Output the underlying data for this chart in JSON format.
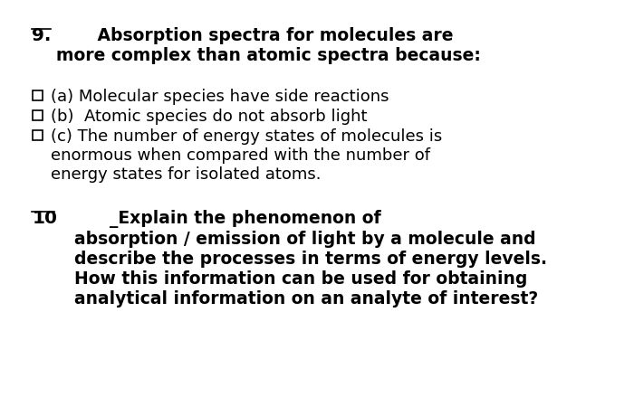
{
  "bg_color": "#ffffff",
  "text_color": "#000000",
  "q9_number": "9.",
  "q9_title": "        ⁠Absorption spectra for molecules are\nmore complex than atomic spectra because:",
  "q9_options": [
    "(a) Molecular species have side reactions",
    "(b)  Atomic species do not absorb light",
    "(c) The number of energy states of molecules is\nenormous when compared with the number of\nenergy states for isolated atoms."
  ],
  "q10_number": "10",
  "q10_title": "         ⁠_Explain the phenomenon of\nabsorption / emission of light by a molecule and\ndescribe the processes in terms of energy levels.\nHow this information can be used for obtaining\nanalytical information on an analyte of interest?",
  "checkbox_symbol": "□",
  "font_size_title": 13.5,
  "font_size_option": 13.0,
  "font_size_number": 14.5
}
